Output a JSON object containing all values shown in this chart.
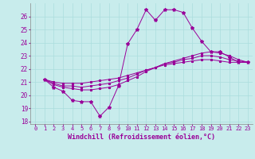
{
  "xlabel": "Windchill (Refroidissement éolien,°C)",
  "background_color": "#c8ecec",
  "line_color": "#990099",
  "grid_color": "#aadddd",
  "xlim": [
    -0.5,
    23.5
  ],
  "ylim": [
    17.8,
    27.0
  ],
  "yticks": [
    18,
    19,
    20,
    21,
    22,
    23,
    24,
    25,
    26
  ],
  "xticks": [
    0,
    1,
    2,
    3,
    4,
    5,
    6,
    7,
    8,
    9,
    10,
    11,
    12,
    13,
    14,
    15,
    16,
    17,
    18,
    19,
    20,
    21,
    22,
    23
  ],
  "series": [
    {
      "x": [
        1,
        2,
        3,
        4,
        5,
        6,
        7,
        8,
        9,
        10,
        11,
        12,
        13,
        14,
        15,
        16,
        17,
        18,
        19,
        20,
        21,
        22,
        23
      ],
      "y": [
        21.2,
        20.6,
        20.3,
        19.6,
        19.5,
        19.5,
        18.4,
        19.1,
        20.7,
        23.9,
        25.0,
        26.5,
        25.7,
        26.5,
        26.5,
        26.3,
        25.1,
        24.1,
        23.3,
        23.3,
        22.9,
        22.5,
        22.5
      ]
    },
    {
      "x": [
        1,
        2,
        3,
        4,
        5,
        6,
        7,
        8,
        9,
        10,
        11,
        12,
        13,
        14,
        15,
        16,
        17,
        18,
        19,
        20,
        21,
        22,
        23
      ],
      "y": [
        21.2,
        20.8,
        20.6,
        20.5,
        20.4,
        20.4,
        20.5,
        20.6,
        20.8,
        21.1,
        21.4,
        21.8,
        22.1,
        22.4,
        22.6,
        22.8,
        23.0,
        23.2,
        23.3,
        23.2,
        23.0,
        22.7,
        22.5
      ]
    },
    {
      "x": [
        1,
        2,
        3,
        4,
        5,
        6,
        7,
        8,
        9,
        10,
        11,
        12,
        13,
        14,
        15,
        16,
        17,
        18,
        19,
        20,
        21,
        22,
        23
      ],
      "y": [
        21.2,
        20.9,
        20.7,
        20.7,
        20.6,
        20.7,
        20.8,
        20.9,
        21.1,
        21.3,
        21.6,
        21.9,
        22.1,
        22.4,
        22.5,
        22.7,
        22.8,
        23.0,
        23.0,
        22.9,
        22.7,
        22.6,
        22.5
      ]
    },
    {
      "x": [
        1,
        2,
        3,
        4,
        5,
        6,
        7,
        8,
        9,
        10,
        11,
        12,
        13,
        14,
        15,
        16,
        17,
        18,
        19,
        20,
        21,
        22,
        23
      ],
      "y": [
        21.2,
        21.0,
        20.9,
        20.9,
        20.9,
        21.0,
        21.1,
        21.2,
        21.3,
        21.5,
        21.7,
        21.9,
        22.1,
        22.3,
        22.4,
        22.5,
        22.6,
        22.7,
        22.7,
        22.6,
        22.5,
        22.5,
        22.5
      ]
    }
  ]
}
